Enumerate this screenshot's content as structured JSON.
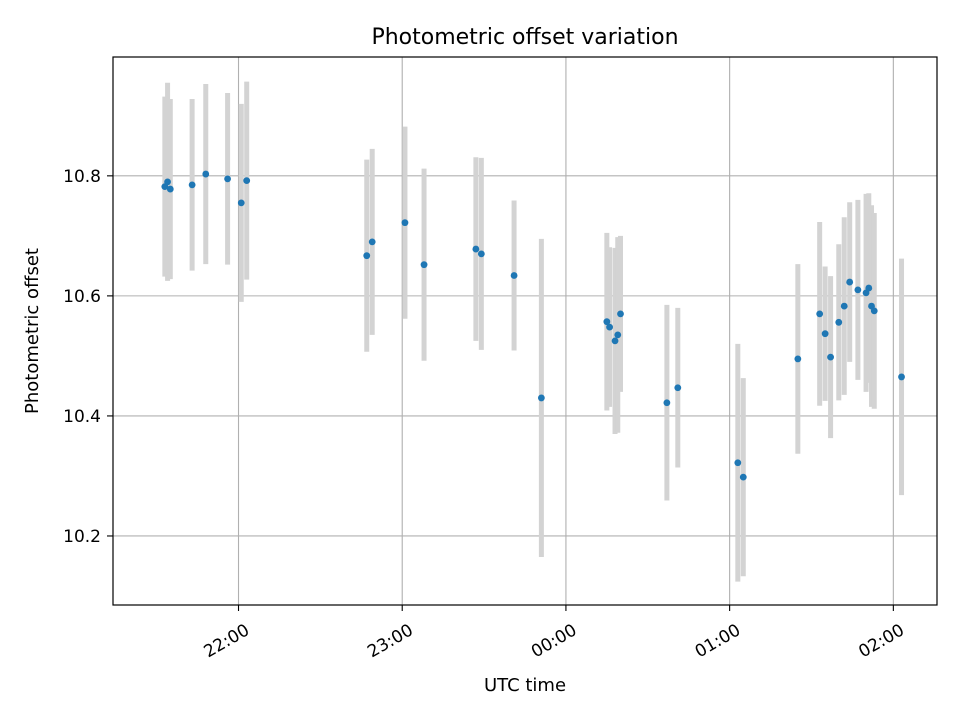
{
  "chart_data": {
    "type": "scatter",
    "title": "Photometric offset variation",
    "xlabel": "UTC time",
    "ylabel": "Photometric offset",
    "x_ticks": [
      {
        "time": "22:00",
        "label": "22:00"
      },
      {
        "time": "23:00",
        "label": "23:00"
      },
      {
        "time": "24:00",
        "label": "00:00"
      },
      {
        "time": "25:00",
        "label": "01:00"
      },
      {
        "time": "26:00",
        "label": "02:00"
      }
    ],
    "y_ticks": [
      10.2,
      10.4,
      10.6,
      10.8
    ],
    "y_tick_labels": [
      "10.2",
      "10.4",
      "10.6",
      "10.8"
    ],
    "xlim": [
      "21:14",
      "26:16"
    ],
    "ylim": [
      10.085,
      10.998
    ],
    "grid": true,
    "marker_color": "#1f77b4",
    "errorbar_color": "#d3d3d3",
    "series": [
      {
        "points": [
          {
            "time": "21:33",
            "y": 10.782,
            "err": 0.15
          },
          {
            "time": "21:34",
            "y": 10.79,
            "err": 0.165
          },
          {
            "time": "21:35",
            "y": 10.778,
            "err": 0.15
          },
          {
            "time": "21:43",
            "y": 10.785,
            "err": 0.143
          },
          {
            "time": "21:48",
            "y": 10.803,
            "err": 0.15
          },
          {
            "time": "21:56",
            "y": 10.795,
            "err": 0.143
          },
          {
            "time": "22:01",
            "y": 10.755,
            "err": 0.165
          },
          {
            "time": "22:03",
            "y": 10.792,
            "err": 0.165
          },
          {
            "time": "22:47",
            "y": 10.667,
            "err": 0.16
          },
          {
            "time": "22:49",
            "y": 10.69,
            "err": 0.155
          },
          {
            "time": "23:01",
            "y": 10.722,
            "err": 0.16
          },
          {
            "time": "23:08",
            "y": 10.652,
            "err": 0.16
          },
          {
            "time": "23:27",
            "y": 10.678,
            "err": 0.153
          },
          {
            "time": "23:29",
            "y": 10.67,
            "err": 0.16
          },
          {
            "time": "23:41",
            "y": 10.634,
            "err": 0.125
          },
          {
            "time": "23:51",
            "y": 10.43,
            "err": 0.265
          },
          {
            "time": "24:15",
            "y": 10.557,
            "err": 0.148
          },
          {
            "time": "24:16",
            "y": 10.548,
            "err": 0.133
          },
          {
            "time": "24:18",
            "y": 10.525,
            "err": 0.155
          },
          {
            "time": "24:19",
            "y": 10.535,
            "err": 0.163
          },
          {
            "time": "24:20",
            "y": 10.57,
            "err": 0.13
          },
          {
            "time": "24:37",
            "y": 10.422,
            "err": 0.163
          },
          {
            "time": "24:41",
            "y": 10.447,
            "err": 0.133
          },
          {
            "time": "25:03",
            "y": 10.322,
            "err": 0.198
          },
          {
            "time": "25:05",
            "y": 10.298,
            "err": 0.165
          },
          {
            "time": "25:25",
            "y": 10.495,
            "err": 0.158
          },
          {
            "time": "25:33",
            "y": 10.57,
            "err": 0.153
          },
          {
            "time": "25:35",
            "y": 10.537,
            "err": 0.112
          },
          {
            "time": "25:37",
            "y": 10.498,
            "err": 0.135
          },
          {
            "time": "25:40",
            "y": 10.556,
            "err": 0.13
          },
          {
            "time": "25:42",
            "y": 10.583,
            "err": 0.148
          },
          {
            "time": "25:44",
            "y": 10.623,
            "err": 0.133
          },
          {
            "time": "25:47",
            "y": 10.61,
            "err": 0.15
          },
          {
            "time": "25:50",
            "y": 10.605,
            "err": 0.165
          },
          {
            "time": "25:51",
            "y": 10.613,
            "err": 0.158
          },
          {
            "time": "25:52",
            "y": 10.583,
            "err": 0.168
          },
          {
            "time": "25:53",
            "y": 10.575,
            "err": 0.163
          },
          {
            "time": "26:03",
            "y": 10.465,
            "err": 0.197
          }
        ]
      }
    ]
  }
}
